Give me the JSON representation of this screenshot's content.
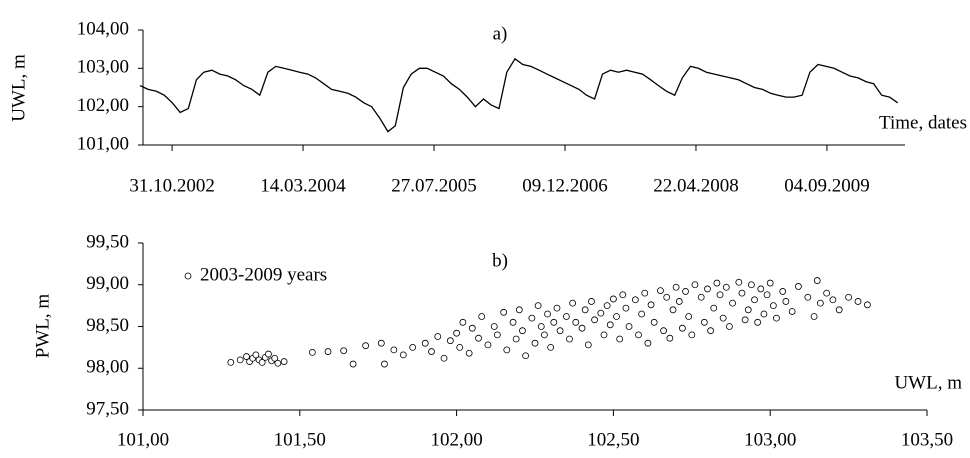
{
  "chart_data": [
    {
      "type": "line",
      "title": "a)",
      "ylabel": "UWL, m",
      "xlabel": "Time, dates",
      "color": "#000000",
      "x": [
        "2002-07-01",
        "2002-08-01",
        "2002-09-01",
        "2002-10-01",
        "2002-11-01",
        "2002-12-01",
        "2003-01-01",
        "2003-02-01",
        "2003-03-01",
        "2003-04-01",
        "2003-05-01",
        "2003-06-01",
        "2003-07-01",
        "2003-08-01",
        "2003-09-01",
        "2003-10-01",
        "2003-11-01",
        "2003-12-01",
        "2004-01-01",
        "2004-02-01",
        "2004-03-01",
        "2004-04-01",
        "2004-05-01",
        "2004-06-01",
        "2004-07-01",
        "2004-08-01",
        "2004-09-01",
        "2004-10-01",
        "2004-11-01",
        "2004-12-01",
        "2005-01-01",
        "2005-02-01",
        "2005-03-01",
        "2005-04-01",
        "2005-05-01",
        "2005-06-01",
        "2005-07-01",
        "2005-08-01",
        "2005-09-01",
        "2005-10-01",
        "2005-11-01",
        "2005-12-01",
        "2006-01-01",
        "2006-02-01",
        "2006-03-01",
        "2006-04-01",
        "2006-05-01",
        "2006-06-01",
        "2006-07-01",
        "2006-08-01",
        "2006-09-01",
        "2006-10-01",
        "2006-11-01",
        "2006-12-01",
        "2007-01-01",
        "2007-02-01",
        "2007-03-01",
        "2007-04-01",
        "2007-05-01",
        "2007-06-01",
        "2007-07-01",
        "2007-08-01",
        "2007-09-01",
        "2007-10-01",
        "2007-11-01",
        "2007-12-01",
        "2008-01-01",
        "2008-02-01",
        "2008-03-01",
        "2008-04-01",
        "2008-05-01",
        "2008-06-01",
        "2008-07-01",
        "2008-08-01",
        "2008-09-01",
        "2008-10-01",
        "2008-11-01",
        "2008-12-01",
        "2009-01-01",
        "2009-02-01",
        "2009-03-01",
        "2009-04-01",
        "2009-05-01",
        "2009-06-01",
        "2009-07-01",
        "2009-08-01",
        "2009-09-01",
        "2009-10-01",
        "2009-11-01",
        "2009-12-01",
        "2010-01-01",
        "2010-02-01",
        "2010-03-01",
        "2010-04-01",
        "2010-05-01",
        "2010-06-01"
      ],
      "values": [
        102.55,
        102.45,
        102.4,
        102.3,
        102.1,
        101.85,
        101.95,
        102.7,
        102.9,
        102.95,
        102.85,
        102.8,
        102.7,
        102.55,
        102.45,
        102.3,
        102.9,
        103.05,
        103.0,
        102.95,
        102.9,
        102.85,
        102.75,
        102.6,
        102.45,
        102.4,
        102.35,
        102.25,
        102.1,
        102.0,
        101.7,
        101.35,
        101.5,
        102.5,
        102.85,
        103.0,
        103.0,
        102.9,
        102.8,
        102.6,
        102.45,
        102.25,
        102.0,
        102.2,
        102.05,
        101.95,
        102.9,
        103.25,
        103.1,
        103.05,
        102.95,
        102.85,
        102.75,
        102.65,
        102.55,
        102.45,
        102.3,
        102.2,
        102.85,
        102.95,
        102.9,
        102.95,
        102.9,
        102.85,
        102.7,
        102.55,
        102.4,
        102.3,
        102.75,
        103.05,
        103.0,
        102.9,
        102.85,
        102.8,
        102.75,
        102.7,
        102.6,
        102.5,
        102.45,
        102.35,
        102.3,
        102.25,
        102.25,
        102.3,
        102.9,
        103.1,
        103.05,
        103.0,
        102.9,
        102.8,
        102.75,
        102.65,
        102.6,
        102.3,
        102.25,
        102.1
      ],
      "xlim": [
        "2002-07-12",
        "2010-06-29"
      ],
      "xticks": [
        {
          "value": "2002-10-31",
          "label": "31.10.2002"
        },
        {
          "value": "2004-03-14",
          "label": "14.03.2004"
        },
        {
          "value": "2005-07-27",
          "label": "27.07.2005"
        },
        {
          "value": "2006-12-09",
          "label": "09.12.2006"
        },
        {
          "value": "2008-04-22",
          "label": "22.04.2008"
        },
        {
          "value": "2009-09-04",
          "label": "04.09.2009"
        }
      ],
      "ylim": [
        101,
        104
      ],
      "yticks": [
        {
          "value": 101,
          "label": "101,00"
        },
        {
          "value": 102,
          "label": "102,00"
        },
        {
          "value": 103,
          "label": "103,00"
        },
        {
          "value": 104,
          "label": "104,00"
        }
      ]
    },
    {
      "type": "scatter",
      "title": "b)",
      "xlabel": "UWL, m",
      "ylabel": "PWL, m",
      "legend": "upper left",
      "x": [
        101.31,
        101.33,
        101.34,
        101.35,
        101.36,
        101.37,
        101.38,
        101.39,
        101.4,
        101.41,
        101.42,
        101.43,
        101.45,
        101.28,
        101.54,
        101.59,
        101.64,
        101.67,
        101.71,
        101.76,
        101.77,
        101.8,
        101.83,
        101.86,
        101.9,
        101.92,
        101.94,
        101.96,
        101.98,
        102.0,
        102.01,
        102.02,
        102.04,
        102.05,
        102.07,
        102.08,
        102.1,
        102.12,
        102.13,
        102.15,
        102.16,
        102.18,
        102.19,
        102.2,
        102.21,
        102.22,
        102.24,
        102.25,
        102.26,
        102.27,
        102.28,
        102.29,
        102.3,
        102.31,
        102.32,
        102.33,
        102.35,
        102.36,
        102.37,
        102.38,
        102.4,
        102.41,
        102.42,
        102.43,
        102.44,
        102.46,
        102.47,
        102.48,
        102.49,
        102.5,
        102.51,
        102.52,
        102.53,
        102.54,
        102.55,
        102.57,
        102.58,
        102.59,
        102.6,
        102.61,
        102.62,
        102.63,
        102.65,
        102.66,
        102.67,
        102.68,
        102.69,
        102.7,
        102.71,
        102.72,
        102.73,
        102.74,
        102.75,
        102.76,
        102.78,
        102.79,
        102.8,
        102.81,
        102.82,
        102.83,
        102.84,
        102.85,
        102.86,
        102.87,
        102.88,
        102.9,
        102.91,
        102.92,
        102.93,
        102.94,
        102.95,
        102.96,
        102.97,
        102.98,
        102.99,
        103.0,
        103.01,
        103.02,
        103.04,
        103.05,
        103.07,
        103.09,
        103.12,
        103.15,
        103.14,
        103.16,
        103.18,
        103.2,
        103.22,
        103.25,
        103.28,
        103.31
      ],
      "series": [
        {
          "name": "2003-2009 years",
          "color": "#000000",
          "values": [
            98.1,
            98.14,
            98.08,
            98.12,
            98.16,
            98.1,
            98.07,
            98.13,
            98.17,
            98.09,
            98.12,
            98.06,
            98.08,
            98.07,
            98.19,
            98.2,
            98.21,
            98.05,
            98.27,
            98.3,
            98.05,
            98.22,
            98.16,
            98.25,
            98.3,
            98.2,
            98.38,
            98.12,
            98.33,
            98.42,
            98.25,
            98.55,
            98.18,
            98.48,
            98.36,
            98.62,
            98.28,
            98.5,
            98.4,
            98.67,
            98.22,
            98.55,
            98.35,
            98.7,
            98.45,
            98.15,
            98.6,
            98.3,
            98.75,
            98.5,
            98.4,
            98.65,
            98.25,
            98.55,
            98.72,
            98.45,
            98.62,
            98.35,
            98.78,
            98.55,
            98.48,
            98.7,
            98.28,
            98.8,
            98.58,
            98.66,
            98.4,
            98.75,
            98.52,
            98.83,
            98.62,
            98.35,
            98.88,
            98.72,
            98.5,
            98.82,
            98.4,
            98.65,
            98.9,
            98.3,
            98.76,
            98.55,
            98.93,
            98.45,
            98.85,
            98.36,
            98.7,
            98.97,
            98.8,
            98.48,
            98.92,
            98.62,
            98.4,
            99.0,
            98.85,
            98.55,
            98.95,
            98.45,
            98.72,
            99.02,
            98.88,
            98.6,
            98.97,
            98.5,
            98.78,
            99.03,
            98.9,
            98.58,
            98.7,
            99.0,
            98.82,
            98.55,
            98.95,
            98.65,
            98.88,
            99.02,
            98.75,
            98.6,
            98.92,
            98.8,
            98.68,
            98.98,
            98.85,
            99.05,
            98.62,
            98.78,
            98.9,
            98.82,
            98.7,
            98.85,
            98.8,
            98.76
          ]
        }
      ],
      "xlim": [
        101,
        103.5
      ],
      "xticks": [
        {
          "value": 101,
          "label": "101,00"
        },
        {
          "value": 101.5,
          "label": "101,50"
        },
        {
          "value": 102,
          "label": "102,00"
        },
        {
          "value": 102.5,
          "label": "102,50"
        },
        {
          "value": 103,
          "label": "103,00"
        },
        {
          "value": 103.5,
          "label": "103,50"
        }
      ],
      "ylim": [
        97.5,
        99.5
      ],
      "yticks": [
        {
          "value": 97.5,
          "label": "97,50"
        },
        {
          "value": 98,
          "label": "98,00"
        },
        {
          "value": 98.5,
          "label": "98,50"
        },
        {
          "value": 99,
          "label": "99,00"
        },
        {
          "value": 99.5,
          "label": "99,50"
        }
      ]
    }
  ]
}
